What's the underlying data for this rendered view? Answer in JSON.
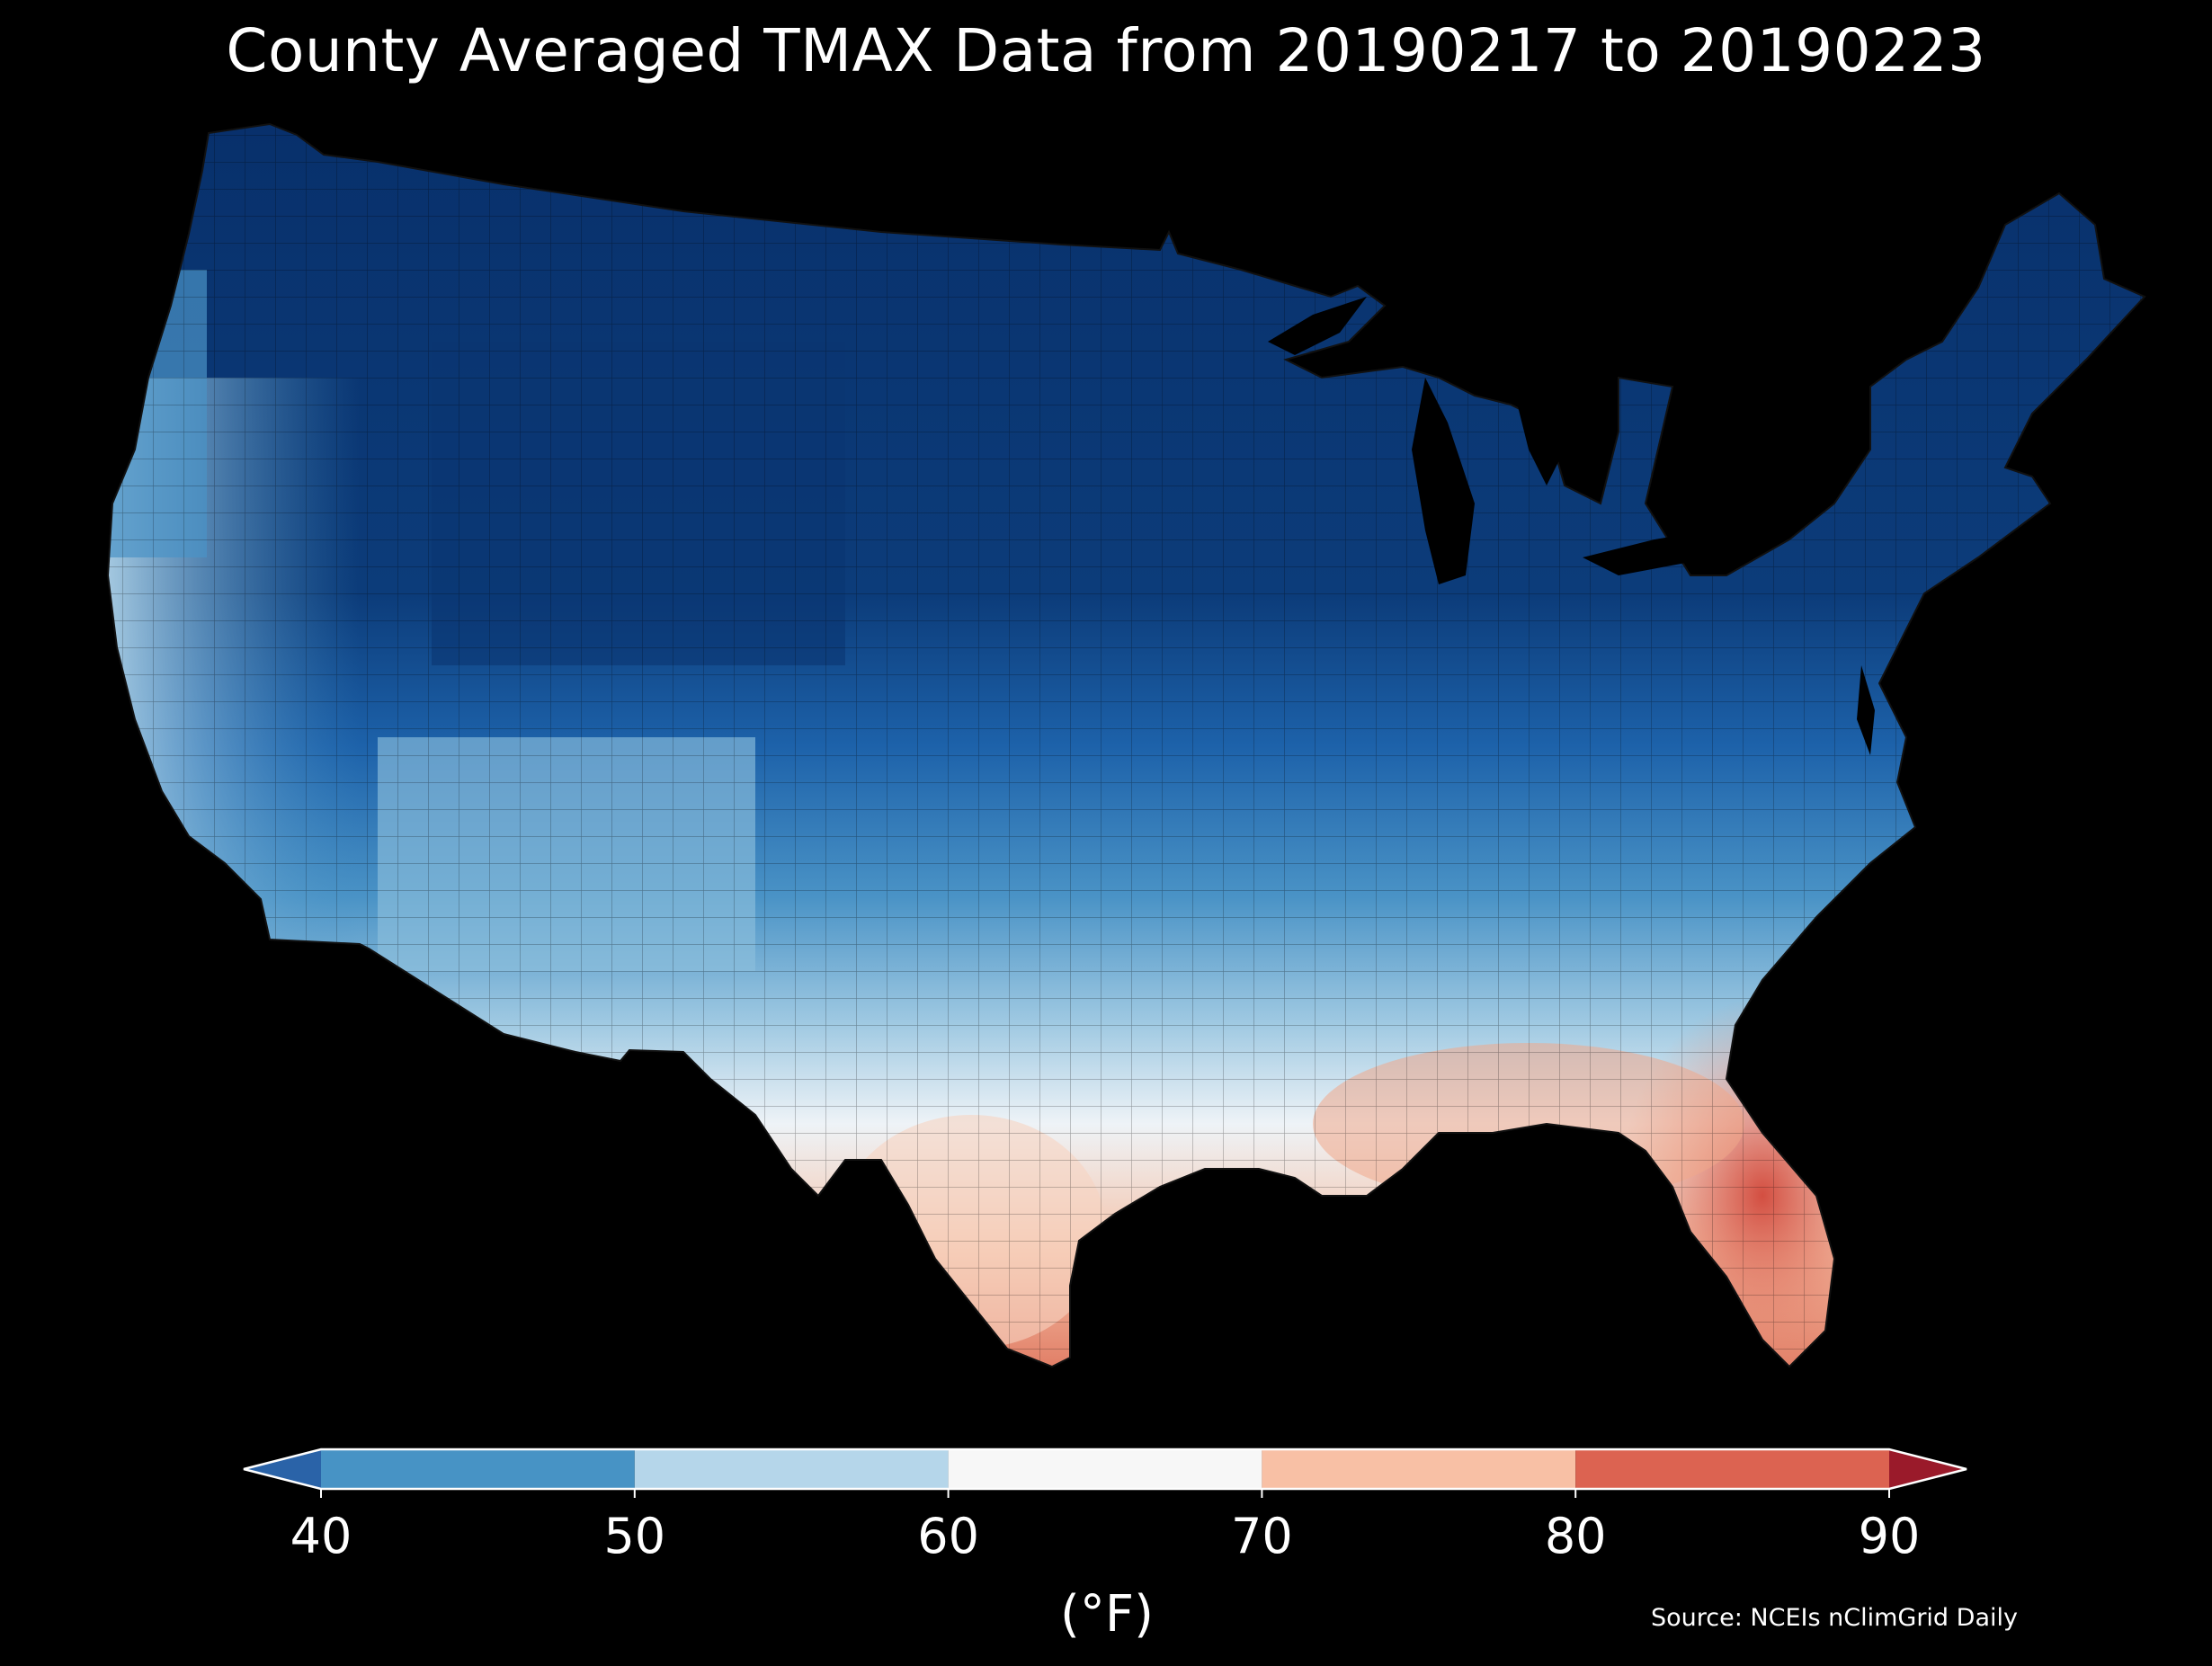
{
  "title": "County Averaged TMAX Data from 20190217 to 20190223",
  "source": "Source: NCEIs nClimGrid Daily",
  "colorbar": {
    "unit_label": "(°F)",
    "ticks": [
      "40",
      "50",
      "60",
      "70",
      "80",
      "90"
    ],
    "bins": [
      {
        "range": [
          40,
          50
        ],
        "color": "#4793c5"
      },
      {
        "range": [
          50,
          60
        ],
        "color": "#b5d6ea"
      },
      {
        "range": [
          60,
          70
        ],
        "color": "#f7f7f7"
      },
      {
        "range": [
          70,
          80
        ],
        "color": "#f8c0a5"
      },
      {
        "range": [
          80,
          90
        ],
        "color": "#dc6351"
      }
    ],
    "extend_low_color": "#2a63a8",
    "extend_high_color": "#9a1a2a"
  },
  "map": {
    "region": "Contiguous United States (county level)",
    "variable": "TMAX",
    "colors": {
      "background": "#000000",
      "coldest": "#08306b",
      "cold": "#1c5fa8",
      "cool": "#4a93c6",
      "mild": "#b6d7ea",
      "neutral": "#f4f4f4",
      "warm": "#f5bda3",
      "hot": "#d65a4a",
      "water": "#000000"
    }
  }
}
